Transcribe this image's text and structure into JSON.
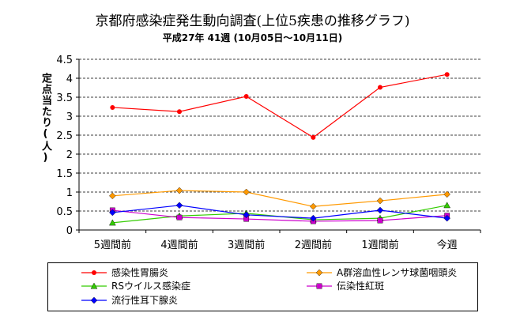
{
  "title": "京都府感染症発生動向調査(上位5疾患の推移グラフ)",
  "subtitle": "平成27年 41週 (10月05日～10月11日)",
  "chart_data": {
    "type": "line",
    "ylabel": "定点当たり(人)",
    "categories": [
      "5週間前",
      "4週間前",
      "3週間前",
      "2週間前",
      "1週間前",
      "今週"
    ],
    "yticks": [
      "0",
      "0.5",
      "1",
      "1.5",
      "2",
      "2.5",
      "3",
      "3.5",
      "4",
      "4.5"
    ],
    "ylim": [
      0,
      4.5
    ],
    "grid": "horizontal dashed",
    "legend_position": "bottom",
    "series": [
      {
        "name": "感染性胃腸炎",
        "color": "#ff0000",
        "marker": "circle",
        "values": [
          3.23,
          3.12,
          3.52,
          2.44,
          3.76,
          4.1
        ]
      },
      {
        "name": "A群溶血性レンサ球菌咽頭炎",
        "color": "#ff9900",
        "marker": "diamond",
        "values": [
          0.9,
          1.04,
          1.0,
          0.62,
          0.77,
          0.94
        ]
      },
      {
        "name": "RSウイルス感染症",
        "color": "#33cc00",
        "marker": "triangle",
        "values": [
          0.19,
          0.37,
          0.44,
          0.27,
          0.31,
          0.65
        ]
      },
      {
        "name": "伝染性紅斑",
        "color": "#cc00cc",
        "marker": "square",
        "values": [
          0.52,
          0.33,
          0.29,
          0.23,
          0.25,
          0.38
        ]
      },
      {
        "name": "流行性耳下腺炎",
        "color": "#0000ff",
        "marker": "diamond",
        "values": [
          0.46,
          0.65,
          0.4,
          0.31,
          0.52,
          0.31
        ]
      }
    ]
  }
}
